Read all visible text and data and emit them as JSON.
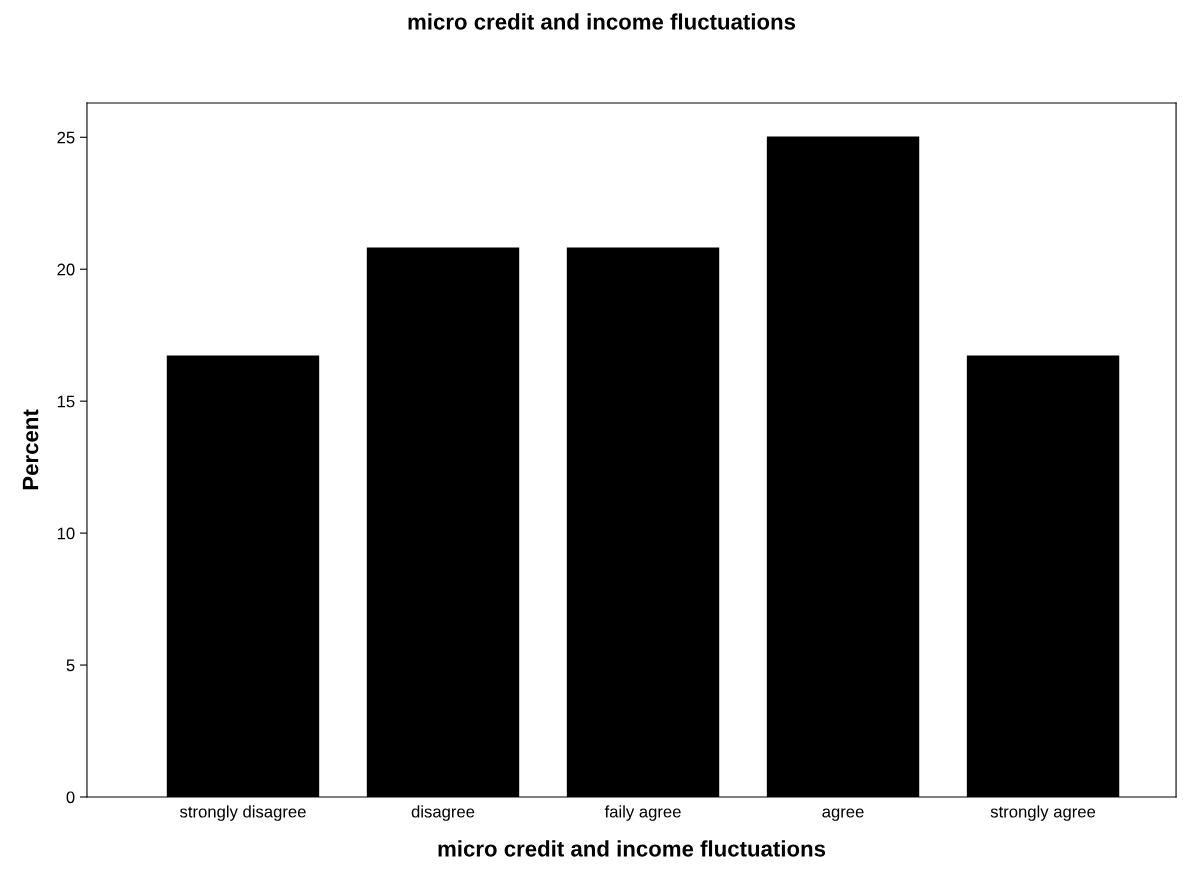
{
  "chart_data": {
    "type": "bar",
    "title": "micro credit and income fluctuations",
    "xlabel": "micro credit and income fluctuations",
    "ylabel": "Percent",
    "categories": [
      "strongly disagree",
      "disagree",
      "faily agree",
      "agree",
      "strongly agree"
    ],
    "values": [
      16.7,
      20.8,
      20.8,
      25.0,
      16.7
    ],
    "color": "#000000",
    "ylim": [
      0,
      26.3
    ],
    "yticks": [
      0,
      5,
      10,
      15,
      20,
      25
    ],
    "grid": false,
    "legend": false
  }
}
